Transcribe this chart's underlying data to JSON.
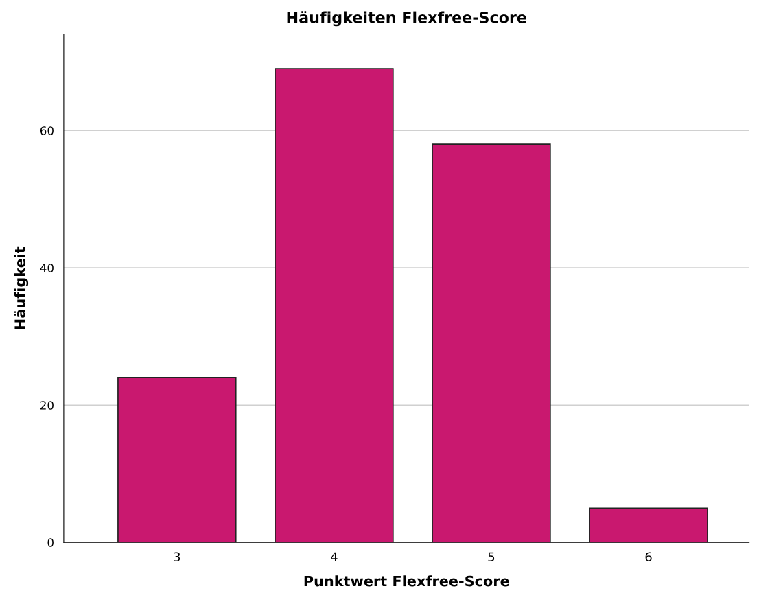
{
  "chart_data": {
    "type": "bar",
    "title": "Häufigkeiten Flexfree-Score",
    "xlabel": "Punktwert Flexfree-Score",
    "ylabel": "Häufigkeit",
    "categories": [
      "3",
      "4",
      "5",
      "6"
    ],
    "values": [
      24,
      69,
      58,
      5
    ],
    "color": "#c9186f",
    "ylim": [
      0,
      74
    ],
    "yticks": [
      0,
      20,
      40,
      60
    ],
    "grid": "y"
  }
}
